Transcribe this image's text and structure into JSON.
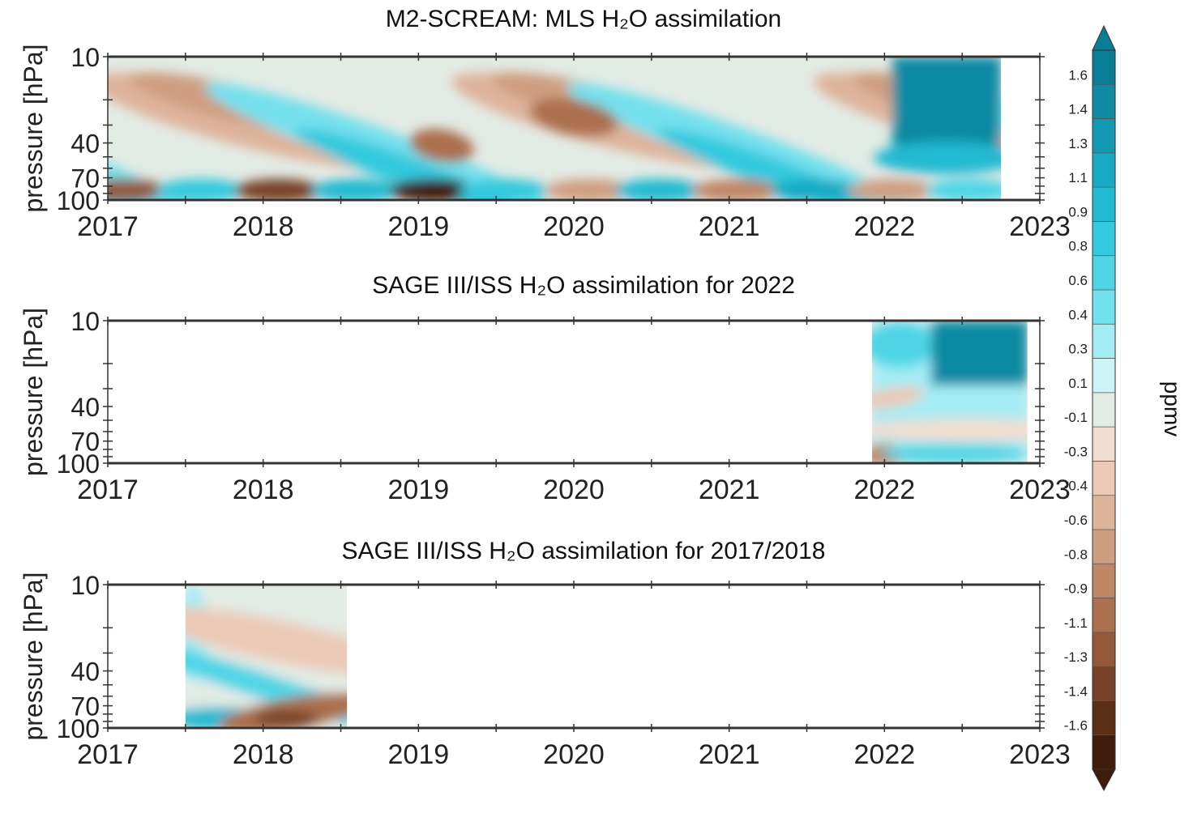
{
  "chart_data": {
    "type": "heatmap",
    "panels": [
      {
        "title": "M2-SCREAM: MLS H₂O assimilation",
        "ylabel": "pressure [hPa]",
        "x_ticks": [
          "2017",
          "2018",
          "2019",
          "2020",
          "2021",
          "2022",
          "2023"
        ],
        "y_ticks": [
          "10",
          "40",
          "70",
          "100"
        ],
        "xlim": [
          2017,
          2023
        ],
        "y_axis": "log pressure, 100 hPa bottom to 10 hPa top",
        "data_extent_years": [
          2017.0,
          2022.75
        ]
      },
      {
        "title": "SAGE III/ISS H₂O assimilation for 2022",
        "ylabel": "pressure [hPa]",
        "x_ticks": [
          "2017",
          "2018",
          "2019",
          "2020",
          "2021",
          "2022",
          "2023"
        ],
        "y_ticks": [
          "10",
          "40",
          "70",
          "100"
        ],
        "xlim": [
          2017,
          2023
        ],
        "y_axis": "log pressure, 100 hPa bottom to 10 hPa top",
        "data_extent_years": [
          2021.92,
          2022.92
        ]
      },
      {
        "title": "SAGE III/ISS H₂O assimilation for 2017/2018",
        "ylabel": "pressure [hPa]",
        "x_ticks": [
          "2017",
          "2018",
          "2019",
          "2020",
          "2021",
          "2022",
          "2023"
        ],
        "y_ticks": [
          "10",
          "40",
          "70",
          "100"
        ],
        "xlim": [
          2017,
          2023
        ],
        "y_axis": "log pressure, 100 hPa bottom to 10 hPa top",
        "data_extent_years": [
          2017.5,
          2018.54
        ]
      }
    ],
    "colorbar": {
      "label": "ppmv",
      "ticks": [
        "1.6",
        "1.4",
        "1.3",
        "1.1",
        "0.9",
        "0.8",
        "0.6",
        "0.4",
        "0.3",
        "0.1",
        "-0.1",
        "-0.3",
        "-0.4",
        "-0.6",
        "-0.8",
        "-0.9",
        "-1.1",
        "-1.3",
        "-1.4",
        "-1.6"
      ],
      "colors": [
        "#0a7d96",
        "#0f8aa3",
        "#1298b2",
        "#18aac4",
        "#22bad2",
        "#33c9de",
        "#4fd5e6",
        "#73e0ed",
        "#a4ecf4",
        "#cdf5f8",
        "#e3ebe5",
        "#f2ddd1",
        "#ebcab7",
        "#deb49b",
        "#cf9e80",
        "#bf8766",
        "#ab704e",
        "#93593a",
        "#774228",
        "#5a2e17",
        "#3f1d0c"
      ]
    }
  }
}
